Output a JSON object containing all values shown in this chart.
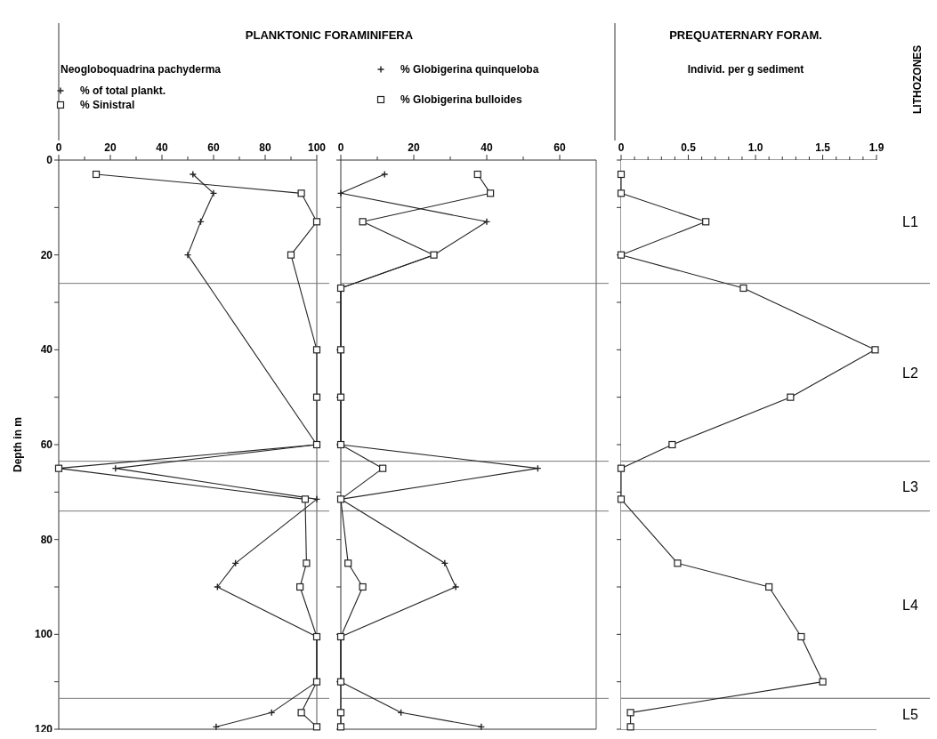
{
  "chart_data": [
    {
      "type": "line",
      "title": "PLANKTONIC FORAMINIFERA",
      "subtitle": "Neogloboquadrina pachyderma",
      "ylabel": "Depth in m",
      "legend": "top",
      "xlim": [
        0,
        100
      ],
      "xticks": [
        0,
        {
          "value": 10,
          "label": null
        },
        20,
        {
          "value": 30,
          "label": null
        },
        40,
        {
          "value": 50,
          "label": null
        },
        60,
        {
          "value": 70,
          "label": null
        },
        80,
        {
          "value": 90,
          "label": null
        },
        100
      ],
      "ylim": [
        120,
        0
      ],
      "yticks": [
        0,
        {
          "value": 10,
          "label": null
        },
        20,
        {
          "value": 30,
          "label": null
        },
        40,
        {
          "value": 50,
          "label": null
        },
        60,
        {
          "value": 70,
          "label": null
        },
        80,
        {
          "value": 90,
          "label": null
        },
        100,
        {
          "value": 110,
          "label": null
        },
        120
      ],
      "ref_lines": [
        {
          "axis": "y",
          "value": 26
        },
        {
          "axis": "y",
          "value": 63.5
        },
        {
          "axis": "y",
          "value": 74
        },
        {
          "axis": "y",
          "value": 113.5
        }
      ],
      "series": [
        {
          "name": "% of total plankt.",
          "color": "#222222",
          "marker": "cross",
          "x": [
            52,
            60,
            55,
            50,
            100,
            22,
            100,
            68.5,
            61.5,
            100,
            100,
            82.5,
            61
          ],
          "values": [
            3,
            7,
            13,
            20,
            60,
            65,
            71.5,
            85,
            90,
            100.5,
            110,
            116.5,
            119.5
          ]
        },
        {
          "name": "% Sinistral",
          "color": "#222222",
          "marker": "square",
          "x": [
            14.5,
            94,
            100,
            90,
            100,
            100,
            100,
            0,
            95.5,
            96,
            93.5,
            100,
            100,
            94,
            100
          ],
          "values": [
            3,
            7,
            13,
            20,
            40,
            50,
            60,
            65,
            71.5,
            85,
            90,
            100.5,
            110,
            116.5,
            119.5
          ]
        }
      ]
    },
    {
      "type": "line",
      "legend": "top",
      "tick_labels": "x",
      "xlim": [
        0,
        70
      ],
      "xticks": [
        0,
        {
          "value": 10,
          "label": null
        },
        20,
        {
          "value": 30,
          "label": null
        },
        40,
        {
          "value": 50,
          "label": null
        },
        60
      ],
      "ylim": [
        120,
        0
      ],
      "yticks": [
        0,
        {
          "value": 10,
          "label": null
        },
        20,
        {
          "value": 30,
          "label": null
        },
        40,
        {
          "value": 50,
          "label": null
        },
        60,
        {
          "value": 70,
          "label": null
        },
        80,
        {
          "value": 90,
          "label": null
        },
        100,
        {
          "value": 110,
          "label": null
        },
        120
      ],
      "ref_lines": [
        {
          "axis": "y",
          "value": 26
        },
        {
          "axis": "y",
          "value": 63.5
        },
        {
          "axis": "y",
          "value": 74
        },
        {
          "axis": "y",
          "value": 113.5
        }
      ],
      "series": [
        {
          "name": "% Globigerina quinqueloba",
          "color": "#222222",
          "marker": "cross",
          "x": [
            12,
            0,
            40,
            25.5,
            0,
            0,
            54,
            0,
            28.5,
            31.5,
            0,
            0,
            16.5,
            38.5
          ],
          "values": [
            3,
            7,
            13,
            20,
            27,
            60,
            65,
            71.5,
            85,
            90,
            100.5,
            110,
            116.5,
            119.5
          ]
        },
        {
          "name": "% Globigerina bulloides",
          "color": "#222222",
          "marker": "square",
          "x": [
            37.5,
            41,
            6,
            25.5,
            0,
            0,
            0,
            0,
            11.5,
            0,
            2,
            6,
            0,
            0,
            0,
            0
          ],
          "values": [
            3,
            7,
            13,
            20,
            27,
            40,
            50,
            60,
            65,
            71.5,
            85,
            90,
            100.5,
            110,
            116.5,
            119.5
          ]
        }
      ]
    },
    {
      "type": "line",
      "title": "PREQUATERNARY FORAM.",
      "subtitle": "Individ. per g sediment",
      "legend_title": "LITHOZONES",
      "tick_labels": "x",
      "marker": "square",
      "xlim": [
        0,
        1.9
      ],
      "xticks": [
        0,
        {
          "value": 0.1,
          "label": null
        },
        {
          "value": 0.2,
          "label": null
        },
        {
          "value": 0.3,
          "label": null
        },
        {
          "value": 0.4,
          "label": null
        },
        0.5,
        {
          "value": 0.6,
          "label": null
        },
        {
          "value": 0.7,
          "label": null
        },
        {
          "value": 0.8,
          "label": null
        },
        {
          "value": 0.9,
          "label": null
        },
        {
          "value": 1,
          "label": "1.0"
        },
        {
          "value": 1.1,
          "label": null
        },
        {
          "value": 1.2,
          "label": null
        },
        {
          "value": 1.3,
          "label": null
        },
        {
          "value": 1.4,
          "label": null
        },
        1.5,
        {
          "value": 1.6,
          "label": null
        },
        {
          "value": 1.7,
          "label": null
        },
        {
          "value": 1.8,
          "label": null
        },
        1.9
      ],
      "ylim": [
        120,
        0
      ],
      "yticks": [
        0,
        {
          "value": 10,
          "label": null
        },
        20,
        {
          "value": 30,
          "label": null
        },
        40,
        {
          "value": 50,
          "label": null
        },
        60,
        {
          "value": 70,
          "label": null
        },
        80,
        {
          "value": 90,
          "label": null
        },
        100,
        {
          "value": 110,
          "label": null
        },
        120
      ],
      "bands": [
        {
          "axis": "y",
          "from": 0,
          "to": 26,
          "label": "L1",
          "color": "#ffffff"
        },
        {
          "axis": "y",
          "from": 26,
          "to": 63.5,
          "label": "L2",
          "color": "#ffffff"
        },
        {
          "axis": "y",
          "from": 63.5,
          "to": 74,
          "label": "L3",
          "color": "#ffffff"
        },
        {
          "axis": "y",
          "from": 74,
          "to": 113.5,
          "label": "L4",
          "color": "#ffffff"
        },
        {
          "axis": "y",
          "from": 113.5,
          "to": 120,
          "label": "L5",
          "color": "#ffffff"
        }
      ],
      "series": [
        {
          "color": "#222222",
          "x": [
            0,
            0,
            0.63,
            0,
            0.91,
            1.89,
            1.26,
            0.38,
            0,
            0,
            0.42,
            1.1,
            1.34,
            1.5,
            0.07,
            0.07
          ],
          "values": [
            3,
            7,
            13,
            20,
            27,
            40,
            50,
            60,
            65,
            71.5,
            85,
            90,
            100.5,
            110,
            116.5,
            119.5
          ]
        }
      ]
    }
  ]
}
